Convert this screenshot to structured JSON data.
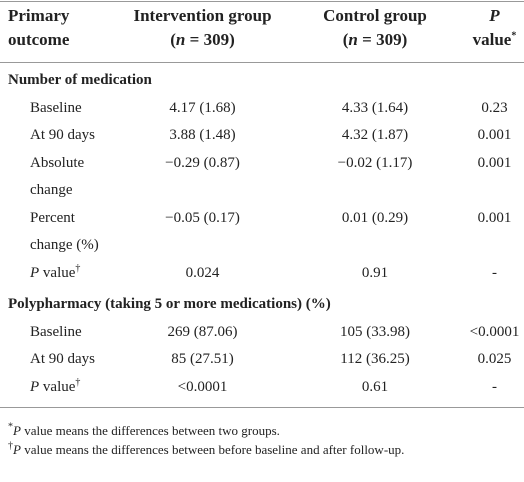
{
  "table": {
    "header": [
      [
        [
          {
            "text": "Primary"
          }
        ],
        [
          {
            "text": "outcome"
          }
        ]
      ],
      [
        [
          {
            "text": "Intervention group"
          }
        ],
        [
          {
            "text": "("
          },
          {
            "text": "n",
            "italic": true
          },
          {
            "text": " = 309)"
          }
        ]
      ],
      [
        [
          {
            "text": "Control group"
          }
        ],
        [
          {
            "text": "("
          },
          {
            "text": "n",
            "italic": true
          },
          {
            "text": " = 309)"
          }
        ]
      ],
      [
        [
          {
            "text": "P",
            "italic": true
          }
        ],
        [
          {
            "text": "value"
          },
          {
            "text": "*",
            "sup": true
          }
        ]
      ]
    ],
    "sections": [
      {
        "title": "Number of medication",
        "rows": [
          {
            "label": [
              {
                "text": "Baseline"
              }
            ],
            "cells": [
              "4.17 (1.68)",
              "4.33 (1.64)",
              "0.23"
            ]
          },
          {
            "label": [
              {
                "text": "At 90 days"
              }
            ],
            "cells": [
              "3.88 (1.48)",
              "4.32 (1.87)",
              "0.001"
            ]
          },
          {
            "label": [
              {
                "text": "Absolute change"
              }
            ],
            "cells": [
              "−0.29 (0.87)",
              "−0.02 (1.17)",
              "0.001"
            ]
          },
          {
            "label": [
              {
                "text": "Percent change (%)"
              }
            ],
            "cells": [
              "−0.05 (0.17)",
              "0.01 (0.29)",
              "0.001"
            ]
          },
          {
            "label": [
              {
                "text": "P",
                "italic": true
              },
              {
                "text": " value"
              },
              {
                "text": "†",
                "sup": true
              }
            ],
            "cells": [
              "0.024",
              "0.91",
              "-"
            ]
          }
        ]
      },
      {
        "title": "Polypharmacy (taking 5 or more medications) (%)",
        "rows": [
          {
            "label": [
              {
                "text": "Baseline"
              }
            ],
            "cells": [
              "269 (87.06)",
              "105 (33.98)",
              "<0.0001"
            ]
          },
          {
            "label": [
              {
                "text": "At 90 days"
              }
            ],
            "cells": [
              "85 (27.51)",
              "112 (36.25)",
              "0.025"
            ]
          },
          {
            "label": [
              {
                "text": "P",
                "italic": true
              },
              {
                "text": " value"
              },
              {
                "text": "†",
                "sup": true
              }
            ],
            "cells": [
              "<0.0001",
              "0.61",
              "-"
            ]
          }
        ]
      }
    ],
    "footnotes": [
      [
        {
          "text": "*",
          "sup": true
        },
        {
          "text": "P",
          "italic": true
        },
        {
          "text": " value means the differences between two groups."
        }
      ],
      [
        {
          "text": "†",
          "sup": true
        },
        {
          "text": "P",
          "italic": true
        },
        {
          "text": " value means the differences between before baseline and after follow-up."
        }
      ]
    ]
  }
}
